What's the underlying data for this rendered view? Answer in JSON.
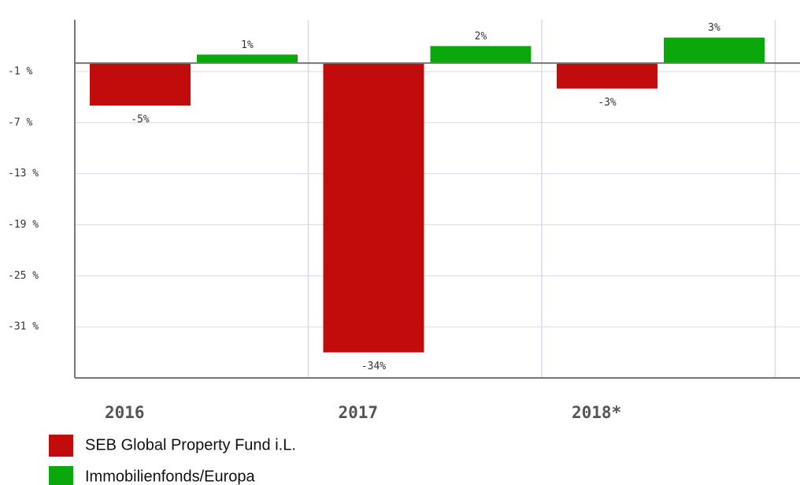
{
  "chart_data": {
    "type": "bar",
    "categories": [
      "2016",
      "2017",
      "2018*"
    ],
    "series": [
      {
        "name": "SEB Global Property Fund i.L.",
        "color": "#c20c0c",
        "values": [
          -5,
          -34,
          -3
        ],
        "value_labels": [
          "-5%",
          "-34%",
          "-3%"
        ]
      },
      {
        "name": "Immobilienfonds/Europa",
        "color": "#0aa80a",
        "values": [
          1,
          2,
          3
        ],
        "value_labels": [
          "1%",
          "2%",
          "3%"
        ]
      }
    ],
    "ylim": [
      -37,
      5.1
    ],
    "yticks": [
      {
        "value": -1,
        "label": "-1 %"
      },
      {
        "value": -7,
        "label": "-7 %"
      },
      {
        "value": -13,
        "label": "-13 %"
      },
      {
        "value": -19,
        "label": "-19 %"
      },
      {
        "value": -25,
        "label": "-25 %"
      },
      {
        "value": -31,
        "label": "-31 %"
      }
    ],
    "grid": true,
    "legend": "bottom-left"
  }
}
